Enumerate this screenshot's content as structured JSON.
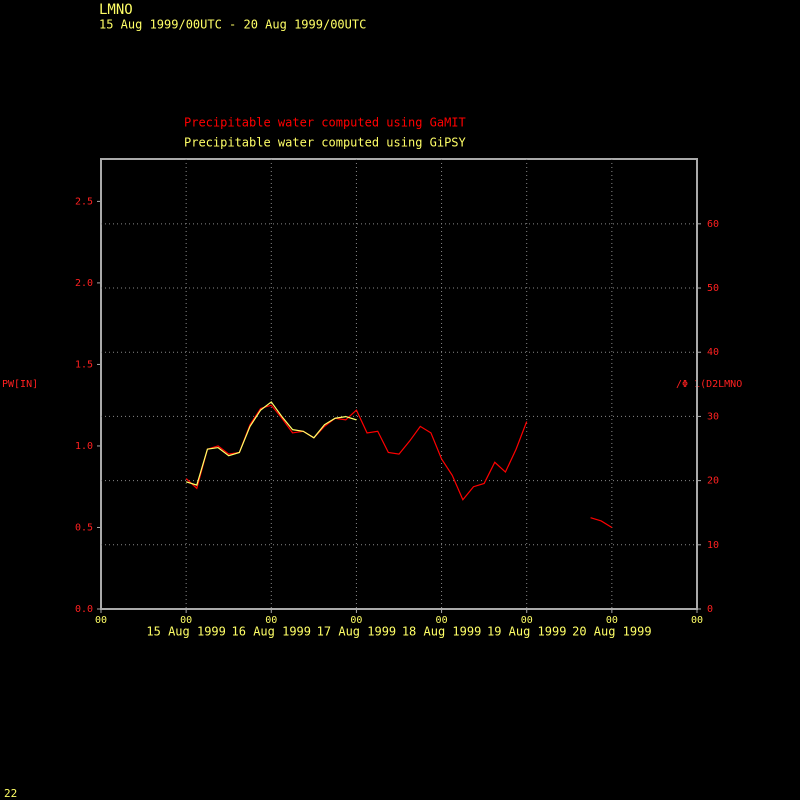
{
  "chart_data": {
    "type": "line",
    "title": "LMNO",
    "subtitle": "15 Aug 1999/00UTC - 20 Aug 1999/00UTC",
    "ylabel": "PW[IN]",
    "y2label": "/Φ 1(D2LMNO",
    "footer": "22",
    "grid": true,
    "grid_axis": "y2",
    "x": [
      "1999-08-15T00:00",
      "1999-08-15T03:00",
      "1999-08-15T06:00",
      "1999-08-15T09:00",
      "1999-08-15T12:00",
      "1999-08-15T15:00",
      "1999-08-15T18:00",
      "1999-08-15T21:00",
      "1999-08-16T00:00",
      "1999-08-16T03:00",
      "1999-08-16T06:00",
      "1999-08-16T09:00",
      "1999-08-16T12:00",
      "1999-08-16T15:00",
      "1999-08-16T18:00",
      "1999-08-16T21:00",
      "1999-08-17T00:00",
      "1999-08-17T03:00",
      "1999-08-17T06:00",
      "1999-08-17T09:00",
      "1999-08-17T12:00",
      "1999-08-17T15:00",
      "1999-08-17T18:00",
      "1999-08-17T21:00",
      "1999-08-18T00:00",
      "1999-08-18T03:00",
      "1999-08-18T06:00",
      "1999-08-18T09:00",
      "1999-08-18T12:00",
      "1999-08-18T15:00",
      "1999-08-18T18:00",
      "1999-08-18T21:00",
      "1999-08-19T00:00",
      "1999-08-19T03:00",
      "1999-08-19T06:00",
      "1999-08-19T09:00",
      "1999-08-19T12:00",
      "1999-08-19T15:00",
      "1999-08-19T18:00",
      "1999-08-19T21:00",
      "1999-08-20T00:00"
    ],
    "series": [
      {
        "name": "Precipitable water computed using GaMIT",
        "color": "#ff0000",
        "values": [
          0.8,
          0.74,
          0.98,
          1.0,
          0.95,
          0.96,
          1.13,
          1.23,
          1.25,
          1.17,
          1.08,
          1.09,
          1.05,
          1.12,
          1.17,
          1.16,
          1.22,
          1.08,
          1.09,
          0.96,
          0.95,
          1.03,
          1.12,
          1.08,
          0.92,
          0.82,
          0.67,
          0.75,
          0.77,
          0.9,
          0.84,
          0.98,
          1.15,
          null,
          null,
          null,
          null,
          null,
          0.56,
          0.54,
          0.5
        ]
      },
      {
        "name": "Precipitable water computed using GiPSY",
        "color": "#ffff66",
        "values": [
          0.78,
          0.76,
          0.98,
          0.99,
          0.94,
          0.96,
          1.12,
          1.22,
          1.27,
          1.18,
          1.1,
          1.09,
          1.05,
          1.13,
          1.17,
          1.18,
          1.16,
          null,
          null,
          null,
          null,
          null,
          null,
          null,
          null,
          null,
          null,
          null,
          null,
          null,
          null,
          null,
          null,
          null,
          null,
          null,
          null,
          null,
          null,
          null,
          null
        ]
      }
    ],
    "xlim": [
      "1999-08-14T00:00",
      "1999-08-21T00:00"
    ],
    "xticks": [
      {
        "value": "1999-08-14T00:00",
        "label": "00"
      },
      {
        "value": "1999-08-15T00:00",
        "label": "00",
        "date_label": "15 Aug 1999"
      },
      {
        "value": "1999-08-16T00:00",
        "label": "00",
        "date_label": "16 Aug 1999"
      },
      {
        "value": "1999-08-17T00:00",
        "label": "00",
        "date_label": "17 Aug 1999"
      },
      {
        "value": "1999-08-18T00:00",
        "label": "00",
        "date_label": "18 Aug 1999"
      },
      {
        "value": "1999-08-19T00:00",
        "label": "00",
        "date_label": "19 Aug 1999"
      },
      {
        "value": "1999-08-20T00:00",
        "label": "00",
        "date_label": "20 Aug 1999"
      },
      {
        "value": "1999-08-21T00:00",
        "label": "00"
      }
    ],
    "ylim": [
      0,
      2.76
    ],
    "yticks": [
      {
        "value": 0,
        "label": "0.0"
      },
      0.5,
      {
        "value": 1,
        "label": "1.0"
      },
      1.5,
      {
        "value": 2,
        "label": "2.0"
      },
      2.5
    ],
    "y2lim": [
      0,
      70.1
    ],
    "y2ticks": [
      0,
      10,
      20,
      30,
      40,
      50,
      60
    ]
  }
}
